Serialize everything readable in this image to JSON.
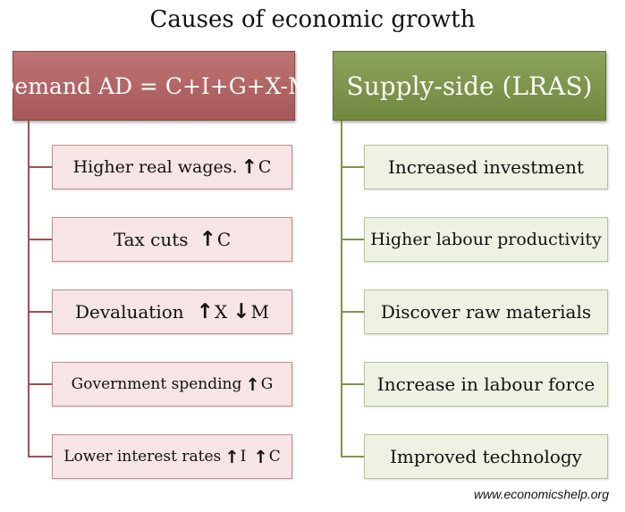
{
  "title": "Causes of economic growth",
  "demand": {
    "heading": "Demand AD = C+I+G+X-M",
    "items": [
      {
        "text": "Higher real wages.",
        "effects": [
          {
            "arrow": "↑",
            "code": "C"
          }
        ]
      },
      {
        "text": "Tax cuts",
        "effects": [
          {
            "arrow": "↑",
            "code": "C"
          }
        ]
      },
      {
        "text": "Devaluation",
        "effects": [
          {
            "arrow": "↑",
            "code": "X"
          },
          {
            "arrow": "↓",
            "code": "M"
          }
        ]
      },
      {
        "text": "Government spending",
        "effects": [
          {
            "arrow": "↑",
            "code": "G"
          }
        ]
      },
      {
        "text": "Lower interest rates",
        "effects": [
          {
            "arrow": "↑",
            "code": "I"
          },
          {
            "arrow": "↑",
            "code": "C"
          }
        ]
      }
    ]
  },
  "supply": {
    "heading": "Supply-side (LRAS)",
    "items": [
      {
        "text": "Increased investment"
      },
      {
        "text": "Higher labour productivity"
      },
      {
        "text": "Discover raw materials"
      },
      {
        "text": "Increase in labour force"
      },
      {
        "text": "Improved technology"
      }
    ]
  },
  "footer": "www.economicshelp.org",
  "colors": {
    "demand_header": "#b06262",
    "demand_item_bg": "#f7e5e5",
    "supply_header": "#7b9349",
    "supply_item_bg": "#eef2e3"
  },
  "icons": {
    "up": "arrow-up-icon",
    "down": "arrow-down-icon"
  }
}
